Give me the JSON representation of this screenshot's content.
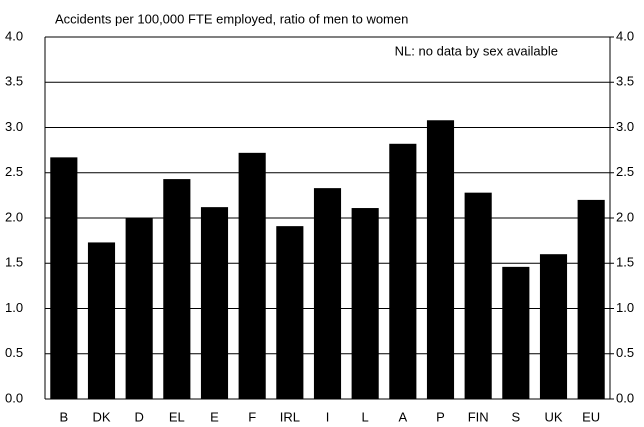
{
  "chart_data": {
    "type": "bar",
    "subtitle": "Accidents per 100,000 FTE employed, ratio of men to women",
    "annotation": "NL: no data by sex available",
    "categories": [
      "B",
      "DK",
      "D",
      "EL",
      "E",
      "F",
      "IRL",
      "I",
      "L",
      "A",
      "P",
      "FIN",
      "S",
      "UK",
      "EU"
    ],
    "values": [
      2.67,
      1.73,
      2.0,
      2.43,
      2.12,
      2.72,
      1.91,
      2.33,
      2.11,
      2.82,
      3.08,
      2.28,
      1.46,
      1.6,
      2.2
    ],
    "color": "#000000",
    "ylim": [
      0,
      4
    ],
    "yticks": [
      {
        "value": 0,
        "label": "0.0"
      },
      0.5,
      {
        "value": 1,
        "label": "1.0"
      },
      1.5,
      {
        "value": 2,
        "label": "2.0"
      },
      2.5,
      {
        "value": 3,
        "label": "3.0"
      },
      3.5,
      {
        "value": 4,
        "label": "4.0"
      }
    ],
    "y2lim": [
      0,
      4
    ],
    "y2ticks": [
      {
        "value": 0,
        "label": "0.0"
      },
      0.5,
      {
        "value": 1,
        "label": "1.0"
      },
      1.5,
      {
        "value": 2,
        "label": "2.0"
      },
      2.5,
      {
        "value": 3,
        "label": "3.0"
      },
      3.5,
      {
        "value": 4,
        "label": "4.0"
      }
    ],
    "grid": true
  }
}
